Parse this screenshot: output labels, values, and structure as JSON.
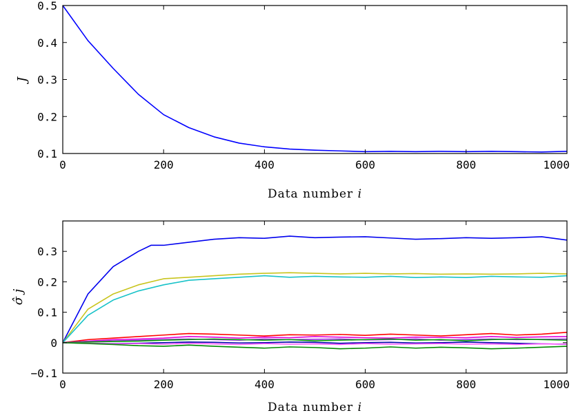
{
  "chart_data": [
    {
      "type": "line",
      "xlabel_text": "Data number ",
      "xlabel_var": "i",
      "ylabel": "J",
      "xlim": [
        0,
        1000
      ],
      "ylim": [
        0.1,
        0.5
      ],
      "xticks": [
        0,
        200,
        400,
        600,
        800,
        1000
      ],
      "xtick_labels": [
        "0",
        "200",
        "400",
        "600",
        "800",
        "1000"
      ],
      "yticks": [
        0.1,
        0.2,
        0.3,
        0.4,
        0.5
      ],
      "ytick_labels": [
        "0.1",
        "0.2",
        "0.3",
        "0.4",
        "0.5"
      ],
      "grid": false,
      "series": [
        {
          "color": "#0000ff",
          "x": [
            0,
            50,
            100,
            150,
            200,
            250,
            300,
            350,
            400,
            450,
            500,
            550,
            600,
            650,
            700,
            750,
            800,
            850,
            900,
            950,
            1000
          ],
          "y": [
            0.5,
            0.405,
            0.33,
            0.26,
            0.205,
            0.17,
            0.145,
            0.128,
            0.118,
            0.112,
            0.109,
            0.107,
            0.105,
            0.106,
            0.105,
            0.106,
            0.105,
            0.106,
            0.105,
            0.104,
            0.106
          ]
        }
      ]
    },
    {
      "type": "line",
      "xlabel_text": "Data number ",
      "xlabel_var": "i",
      "ylabel": "σ̂ j",
      "xlim": [
        0,
        1000
      ],
      "ylim": [
        -0.1,
        0.4
      ],
      "xticks": [
        0,
        200,
        400,
        600,
        800,
        1000
      ],
      "xtick_labels": [
        "0",
        "200",
        "400",
        "600",
        "800",
        "1000"
      ],
      "yticks": [
        -0.1,
        0,
        0.1,
        0.2,
        0.3
      ],
      "ytick_labels": [
        "−0.1",
        "0",
        "0.1",
        "0.2",
        "0.3"
      ],
      "grid": false,
      "series": [
        {
          "color": "#0000ee",
          "x": [
            0,
            50,
            100,
            150,
            175,
            200,
            250,
            300,
            350,
            400,
            450,
            500,
            550,
            600,
            650,
            700,
            750,
            800,
            850,
            900,
            950,
            1000
          ],
          "y": [
            0,
            0.16,
            0.25,
            0.3,
            0.32,
            0.32,
            0.33,
            0.34,
            0.345,
            0.343,
            0.35,
            0.345,
            0.347,
            0.348,
            0.344,
            0.34,
            0.342,
            0.345,
            0.343,
            0.345,
            0.348,
            0.337
          ]
        },
        {
          "color": "#c8c41c",
          "x": [
            0,
            50,
            100,
            150,
            200,
            250,
            300,
            350,
            400,
            450,
            500,
            550,
            600,
            650,
            700,
            750,
            800,
            850,
            900,
            950,
            1000
          ],
          "y": [
            0,
            0.11,
            0.16,
            0.19,
            0.21,
            0.215,
            0.22,
            0.225,
            0.228,
            0.23,
            0.228,
            0.226,
            0.228,
            0.226,
            0.227,
            0.225,
            0.226,
            0.225,
            0.226,
            0.228,
            0.226
          ]
        },
        {
          "color": "#17c2c8",
          "x": [
            0,
            50,
            100,
            150,
            200,
            250,
            300,
            350,
            400,
            450,
            500,
            550,
            600,
            650,
            700,
            750,
            800,
            850,
            900,
            950,
            1000
          ],
          "y": [
            0,
            0.09,
            0.14,
            0.17,
            0.19,
            0.205,
            0.21,
            0.215,
            0.22,
            0.215,
            0.218,
            0.216,
            0.215,
            0.218,
            0.214,
            0.216,
            0.214,
            0.218,
            0.216,
            0.215,
            0.22
          ]
        },
        {
          "color": "#ff0000",
          "x": [
            0,
            50,
            100,
            150,
            200,
            250,
            300,
            350,
            400,
            450,
            500,
            550,
            600,
            650,
            700,
            750,
            800,
            850,
            900,
            950,
            1000
          ],
          "y": [
            0,
            0.01,
            0.015,
            0.02,
            0.025,
            0.03,
            0.028,
            0.025,
            0.022,
            0.026,
            0.025,
            0.027,
            0.024,
            0.028,
            0.025,
            0.022,
            0.026,
            0.03,
            0.025,
            0.028,
            0.034
          ]
        },
        {
          "color": "#dd00dd",
          "x": [
            0,
            50,
            100,
            150,
            200,
            250,
            300,
            350,
            400,
            450,
            500,
            550,
            600,
            650,
            700,
            750,
            800,
            850,
            900,
            950,
            1000
          ],
          "y": [
            0,
            0.005,
            0.01,
            0.012,
            0.015,
            0.02,
            0.018,
            0.015,
            0.018,
            0.016,
            0.02,
            0.018,
            0.016,
            0.015,
            0.018,
            0.017,
            0.016,
            0.02,
            0.017,
            0.019,
            0.02
          ]
        },
        {
          "color": "#9a2ae0",
          "x": [
            0,
            50,
            100,
            150,
            200,
            250,
            300,
            350,
            400,
            450,
            500,
            550,
            600,
            650,
            700,
            750,
            800,
            850,
            900,
            950,
            1000
          ],
          "y": [
            0,
            0.003,
            0.006,
            0.008,
            0.01,
            0.012,
            0.01,
            0.008,
            0.012,
            0.01,
            0.011,
            0.012,
            0.009,
            0.01,
            0.012,
            0.008,
            0.01,
            0.012,
            0.01,
            0.011,
            0.012
          ]
        },
        {
          "color": "#00a000",
          "x": [
            0,
            50,
            100,
            150,
            200,
            250,
            300,
            350,
            400,
            450,
            500,
            550,
            600,
            650,
            700,
            750,
            800,
            850,
            900,
            950,
            1000
          ],
          "y": [
            0,
            0.002,
            0.004,
            0.005,
            0.008,
            0.01,
            0.012,
            0.01,
            0.008,
            0.01,
            0.006,
            0.008,
            0.01,
            0.012,
            0.008,
            0.01,
            0.006,
            0.01,
            0.012,
            0.01,
            0.008
          ]
        },
        {
          "color": "#0000aa",
          "x": [
            0,
            50,
            100,
            150,
            200,
            250,
            300,
            350,
            400,
            450,
            500,
            550,
            600,
            650,
            700,
            750,
            800,
            850,
            900,
            950,
            1000
          ],
          "y": [
            0,
            -0.002,
            -0.003,
            -0.002,
            0,
            0.002,
            0.001,
            -0.001,
            0,
            0.002,
            0.001,
            -0.002,
            0,
            0.001,
            -0.001,
            0,
            0.002,
            0,
            -0.002,
            -0.004,
            -0.005
          ]
        },
        {
          "color": "#ff55ff",
          "x": [
            0,
            50,
            100,
            150,
            200,
            250,
            300,
            350,
            400,
            450,
            500,
            550,
            600,
            650,
            700,
            750,
            800,
            850,
            900,
            950,
            1000
          ],
          "y": [
            0,
            -0.002,
            -0.004,
            -0.003,
            -0.005,
            -0.002,
            -0.004,
            -0.006,
            -0.003,
            -0.005,
            -0.004,
            -0.006,
            -0.003,
            -0.005,
            -0.004,
            -0.003,
            -0.005,
            -0.004,
            -0.006,
            -0.004,
            -0.005
          ]
        },
        {
          "color": "#008800",
          "x": [
            0,
            50,
            100,
            150,
            200,
            250,
            300,
            350,
            400,
            450,
            500,
            550,
            600,
            650,
            700,
            750,
            800,
            850,
            900,
            950,
            1000
          ],
          "y": [
            0,
            -0.003,
            -0.006,
            -0.01,
            -0.012,
            -0.008,
            -0.012,
            -0.015,
            -0.018,
            -0.014,
            -0.016,
            -0.02,
            -0.018,
            -0.014,
            -0.018,
            -0.015,
            -0.017,
            -0.02,
            -0.018,
            -0.015,
            -0.012
          ]
        }
      ]
    }
  ]
}
